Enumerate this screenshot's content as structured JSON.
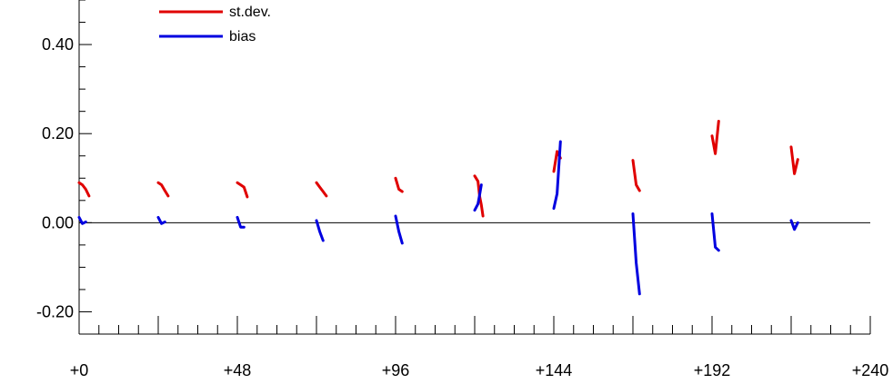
{
  "chart_data": {
    "type": "line",
    "title": "",
    "xlabel": "",
    "ylabel": "",
    "xlim": [
      0,
      240
    ],
    "ylim": [
      -0.25,
      0.5
    ],
    "x_ticks": [
      0,
      48,
      96,
      144,
      192,
      240
    ],
    "x_tick_labels": [
      "+0",
      "+48",
      "+96",
      "+144",
      "+192",
      "+240"
    ],
    "y_ticks": [
      -0.2,
      0.0,
      0.2,
      0.4
    ],
    "y_tick_labels": [
      "-0.20",
      "0.00",
      "0.20",
      "0.40"
    ],
    "zero_line": true,
    "grid": false,
    "legend_position": "top-left",
    "series": [
      {
        "name": "st.dev.",
        "color": "#e00000",
        "segments": [
          [
            [
              0,
              0.09
            ],
            [
              1,
              0.085
            ],
            [
              2,
              0.075
            ],
            [
              3,
              0.06
            ]
          ],
          [
            [
              24,
              0.09
            ],
            [
              25,
              0.085
            ],
            [
              26,
              0.072
            ],
            [
              27,
              0.06
            ]
          ],
          [
            [
              48,
              0.09
            ],
            [
              49,
              0.085
            ],
            [
              50,
              0.08
            ],
            [
              51,
              0.058
            ]
          ],
          [
            [
              72,
              0.09
            ],
            [
              73,
              0.08
            ],
            [
              74,
              0.07
            ],
            [
              75,
              0.06
            ]
          ],
          [
            [
              96,
              0.1
            ],
            [
              97,
              0.075
            ],
            [
              98,
              0.07
            ]
          ],
          [
            [
              120,
              0.105
            ],
            [
              121,
              0.093
            ],
            [
              121.5,
              0.06
            ],
            [
              122,
              0.04
            ],
            [
              122.5,
              0.015
            ]
          ],
          [
            [
              144,
              0.115
            ],
            [
              145,
              0.16
            ],
            [
              146,
              0.145
            ]
          ],
          [
            [
              168,
              0.14
            ],
            [
              169,
              0.085
            ],
            [
              170,
              0.072
            ]
          ],
          [
            [
              192,
              0.195
            ],
            [
              193,
              0.155
            ],
            [
              194,
              0.228
            ]
          ],
          [
            [
              216,
              0.17
            ],
            [
              217,
              0.11
            ],
            [
              218,
              0.142
            ]
          ]
        ]
      },
      {
        "name": "bias",
        "color": "#0000e0",
        "segments": [
          [
            [
              0,
              0.012
            ],
            [
              1,
              -0.002
            ],
            [
              2,
              0.002
            ]
          ],
          [
            [
              24,
              0.012
            ],
            [
              25,
              -0.002
            ],
            [
              26,
              0.002
            ]
          ],
          [
            [
              48,
              0.012
            ],
            [
              49,
              -0.01
            ],
            [
              50,
              -0.01
            ]
          ],
          [
            [
              72,
              0.005
            ],
            [
              73,
              -0.02
            ],
            [
              74,
              -0.04
            ]
          ],
          [
            [
              96,
              0.015
            ],
            [
              97,
              -0.02
            ],
            [
              98,
              -0.046
            ]
          ],
          [
            [
              120,
              0.028
            ],
            [
              121,
              0.042
            ],
            [
              121.5,
              0.062
            ],
            [
              122,
              0.085
            ]
          ],
          [
            [
              144,
              0.032
            ],
            [
              145,
              0.065
            ],
            [
              146,
              0.182
            ]
          ],
          [
            [
              168,
              0.02
            ],
            [
              169,
              -0.09
            ],
            [
              170,
              -0.16
            ]
          ],
          [
            [
              192,
              0.02
            ],
            [
              193,
              -0.055
            ],
            [
              194,
              -0.062
            ]
          ],
          [
            [
              216,
              0.005
            ],
            [
              217,
              -0.015
            ],
            [
              218,
              0.0
            ]
          ]
        ]
      }
    ]
  }
}
